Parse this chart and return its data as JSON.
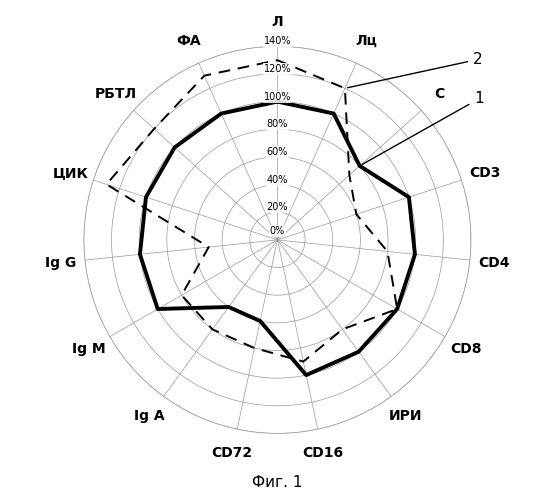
{
  "categories": [
    "Л",
    "Лц",
    "С",
    "CD3",
    "CD4",
    "CD8",
    "ИРИ",
    "CD16",
    "CD72",
    "Ig А",
    "Ig М",
    "Ig G",
    "ЦИК",
    "РБТЛ",
    "ФА"
  ],
  "series1": [
    100,
    100,
    80,
    100,
    100,
    100,
    100,
    100,
    60,
    60,
    100,
    100,
    100,
    100,
    100
  ],
  "series2": [
    130,
    120,
    70,
    60,
    80,
    100,
    80,
    90,
    80,
    80,
    80,
    50,
    130,
    120,
    130
  ],
  "r_max": 140,
  "r_ticks": [
    20,
    40,
    60,
    80,
    100,
    120,
    140
  ],
  "r_tick_labels": [
    "20%",
    "40%",
    "60%",
    "80%",
    "100%",
    "120%",
    "140%"
  ],
  "series1_color": "#000000",
  "series1_lw": 2.8,
  "series2_color": "#000000",
  "series2_lw": 1.4,
  "title": "Фиг. 1",
  "background_color": "#ffffff",
  "grid_color": "#999999"
}
